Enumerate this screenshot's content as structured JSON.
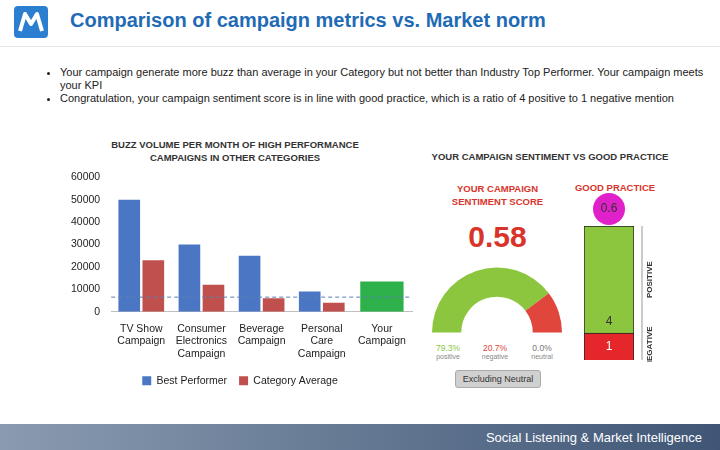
{
  "title": "Comparison of campaign metrics vs. Market norm",
  "bullets": [
    "Your campaign generate more buzz than average in your Category but not better than Industry Top Performer. Your campaign meets your KPI",
    "Congratulation, your campaign sentiment score is in line with good practice, which is a ratio of 4 positive to 1 negative mention"
  ],
  "section_title": "YOUR CAMPAIGN SENTIMENT VS GOOD PRACTICE",
  "footer": "Social Listening & Market Intelligence",
  "chart_data": [
    {
      "type": "bar",
      "title": "BUZZ VOLUME PER MONTH OF HIGH PERFORMANCE CAMPAIGNS IN OTHER CATEGORIES",
      "categories": [
        "TV Show Campaign",
        "Consumer Electronics Campaign",
        "Beverage Campaign",
        "Personal Care Campaign",
        "Your Campaign"
      ],
      "series": [
        {
          "name": "Best Performer",
          "colors": [
            "#4a76c4",
            "#4a76c4",
            "#4a76c4",
            "#4a76c4",
            "#2eb04a"
          ],
          "values": [
            50000,
            30000,
            25000,
            9000,
            13500
          ]
        },
        {
          "name": "Category Average",
          "color": "#c0504d",
          "values": [
            23000,
            12000,
            6000,
            4000,
            null
          ]
        }
      ],
      "ylim": [
        0,
        60000
      ],
      "yticks": [
        0,
        10000,
        20000,
        30000,
        40000,
        50000,
        60000
      ],
      "grid": false,
      "legend": "bottom",
      "reference_line": 6500
    },
    {
      "type": "gauge",
      "title": "YOUR CAMPAIGN SENTIMENT SCORE",
      "score": 0.58,
      "categories": [
        "positive",
        "negative",
        "neutral"
      ],
      "values": [
        79.3,
        20.7,
        0.0
      ],
      "value_labels": [
        "79.3%",
        "20.7%",
        "0.0%"
      ],
      "colors": [
        "#8cc63f",
        "#e0463c",
        "#bfbfbf"
      ],
      "data_labels": true,
      "button": "Excluding Neutral"
    },
    {
      "type": "bar",
      "title": "GOOD PRACTICE",
      "stacked": true,
      "score": 0.6,
      "categories": [
        null
      ],
      "series": [
        {
          "name": "NEGATIVE",
          "color": "#e5262b",
          "values": [
            1
          ]
        },
        {
          "name": "POSITIVE",
          "color": "#8cc63f",
          "values": [
            4
          ]
        }
      ],
      "ylim": [
        0,
        5
      ],
      "tick_labels": false,
      "grid": false,
      "data_labels": true
    }
  ]
}
